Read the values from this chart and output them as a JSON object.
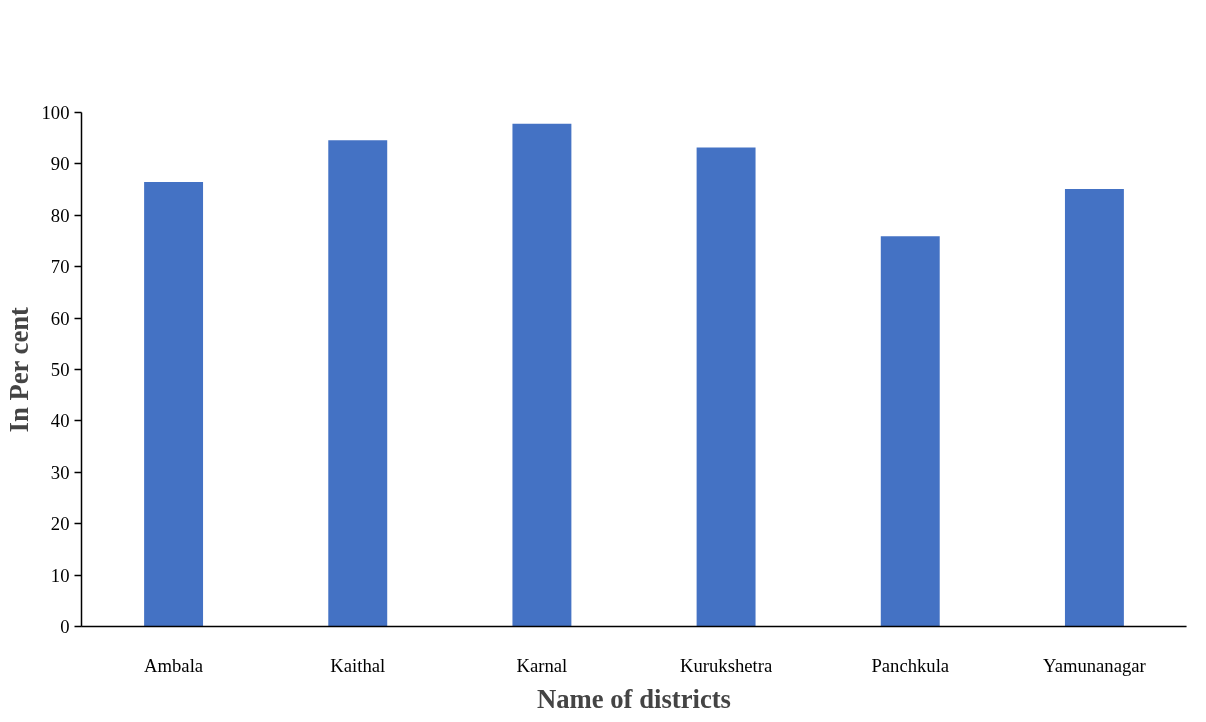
{
  "chart_data": {
    "type": "bar",
    "xlabel": "Name of districts",
    "ylabel": "In Per cent",
    "categories": [
      "Ambala",
      "Kaithal",
      "Karnal",
      "Kurukshetra",
      "Panchkula",
      "Yamunanagar"
    ],
    "values": [
      86.5,
      94.6,
      97.8,
      93.2,
      75.9,
      85.1
    ],
    "color": "#4472c4",
    "ylim": [
      0,
      100
    ],
    "yticks": [
      0,
      10,
      20,
      30,
      40,
      50,
      60,
      70,
      80,
      90,
      100
    ],
    "grid": false
  }
}
